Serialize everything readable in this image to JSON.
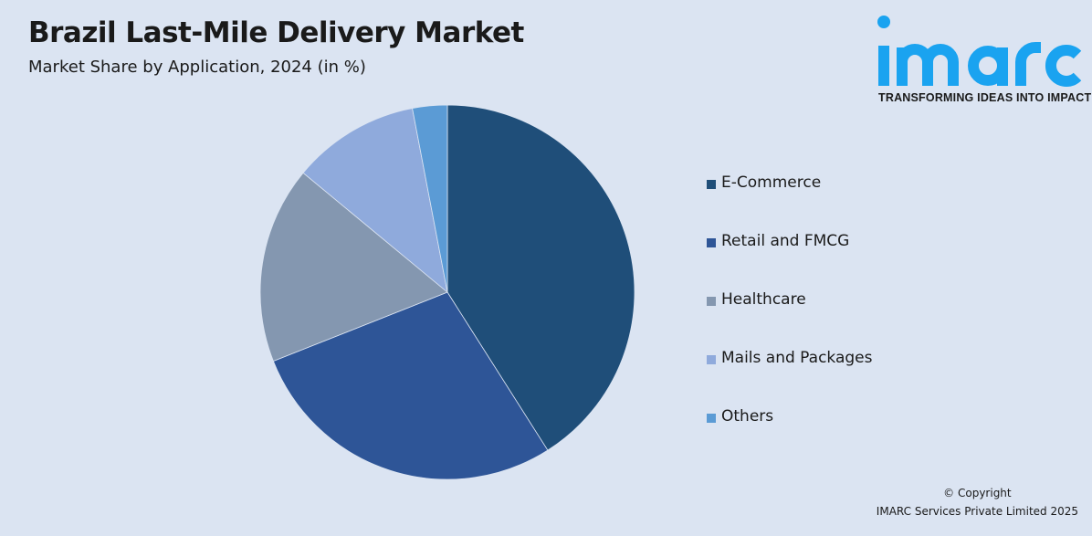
{
  "header": {
    "title": "Brazil Last-Mile Delivery Market",
    "subtitle": "Market Share by Application, 2024 (in %)"
  },
  "logo": {
    "text": "imarc",
    "tagline": "TRANSFORMING IDEAS INTO IMPACT",
    "color": "#1aa3f0"
  },
  "chart_data": {
    "type": "pie",
    "title": "Brazil Last-Mile Delivery Market",
    "subtitle": "Market Share by Application, 2024 (in %)",
    "categories": [
      "E-Commerce",
      "Retail and FMCG",
      "Healthcare",
      "Mails and Packages",
      "Others"
    ],
    "values": [
      41,
      28,
      17,
      11,
      3
    ],
    "colors": [
      "#1f4e79",
      "#2e5597",
      "#8497b0",
      "#8faadc",
      "#5b9bd5"
    ],
    "start": "12 o'clock, clockwise",
    "legend_position": "right"
  },
  "footer": {
    "copyright": "© Copyright",
    "company": "IMARC Services Private Limited 2025"
  }
}
